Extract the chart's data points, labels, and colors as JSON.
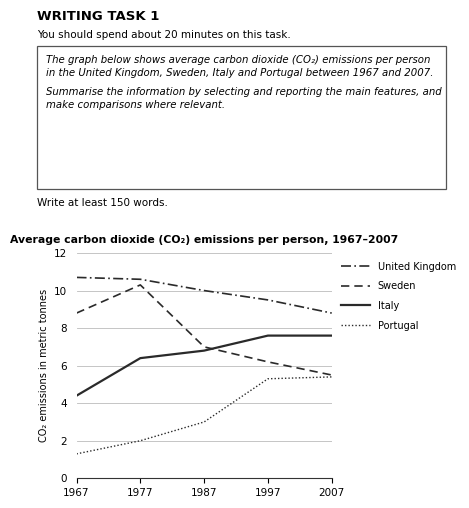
{
  "title": "Average carbon dioxide (CO₂) emissions per person, 1967–2007",
  "ylabel": "CO₂ emissions in metric tonnes",
  "years": [
    1967,
    1977,
    1987,
    1997,
    2007
  ],
  "uk": [
    10.7,
    10.6,
    10.0,
    9.5,
    8.8
  ],
  "sweden": [
    8.8,
    10.3,
    7.0,
    6.2,
    5.5
  ],
  "italy": [
    4.4,
    6.4,
    6.8,
    7.6,
    7.6
  ],
  "portugal": [
    1.3,
    2.0,
    3.0,
    5.3,
    5.4
  ],
  "ylim": [
    0,
    12
  ],
  "yticks": [
    0,
    2,
    4,
    6,
    8,
    10,
    12
  ],
  "xticks": [
    1967,
    1977,
    1987,
    1997,
    2007
  ],
  "legend_labels": [
    "United Kingdom",
    "Sweden",
    "Italy",
    "Portugal"
  ],
  "header_title": "WRITING TASK 1",
  "header_sub": "You should spend about 20 minutes on this task.",
  "box_line1": "The graph below shows average carbon dioxide (CO₂) emissions per person",
  "box_line2": "in the United Kingdom, Sweden, Italy and Portugal between 1967 and 2007.",
  "box_line3": "Summarise the information by selecting and reporting the main features, and",
  "box_line4": "make comparisons where relevant.",
  "footer_text": "Write at least 150 words.",
  "bg_color": "#ffffff",
  "line_color": "#2a2a2a",
  "grid_color": "#bbbbbb"
}
